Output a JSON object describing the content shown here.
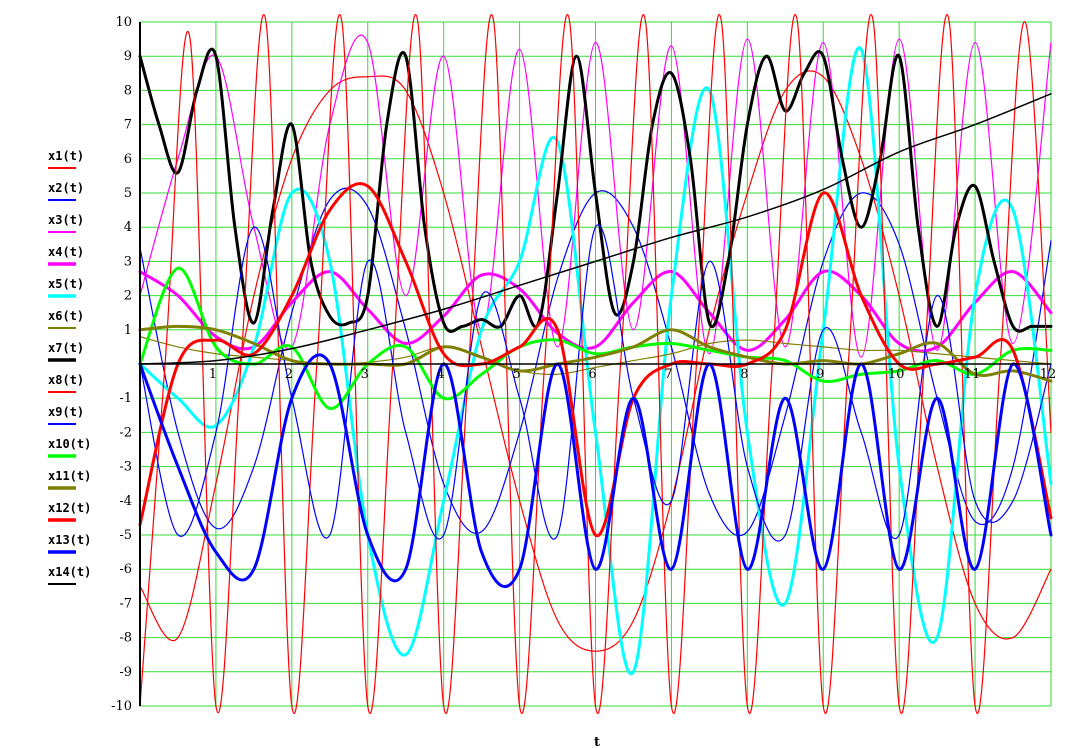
{
  "chart_data": {
    "type": "line",
    "xlabel": "t",
    "ylabel": "",
    "xlim": [
      0,
      12
    ],
    "ylim": [
      -10,
      10
    ],
    "grid": true,
    "grid_color": "#33dd33",
    "legend_position": "left",
    "x_ticks": [
      "1",
      "2",
      "3",
      "4",
      "5",
      "6",
      "7",
      "8",
      "9",
      "10",
      "11",
      "12"
    ],
    "y_ticks": [
      "-10",
      "-9",
      "-8",
      "-7",
      "-6",
      "-5",
      "-4",
      "-3",
      "-2",
      "-1",
      "1",
      "2",
      "3",
      "4",
      "5",
      "6",
      "7",
      "8",
      "9",
      "10"
    ],
    "series": [
      {
        "name": "x1(t)",
        "color": "#ff0000",
        "width": 1.2,
        "x": [
          0,
          0.5,
          1,
          1.5,
          2,
          2.5,
          3,
          3.5,
          4,
          4.5,
          5,
          5.5,
          6,
          6.5,
          7,
          7.5,
          8,
          8.5,
          9,
          9.5,
          10,
          10.5,
          11,
          11.5,
          12
        ],
        "y": [
          -6.5,
          -8,
          -3.5,
          2,
          6,
          8,
          8.4,
          8,
          5,
          0.5,
          -4,
          -7.5,
          -8.4,
          -7.5,
          -4,
          1,
          5,
          8,
          8.4,
          6,
          2,
          -3,
          -7,
          -8,
          -6
        ]
      },
      {
        "name": "x2(t)",
        "color": "#0000ff",
        "width": 1.2,
        "x": [
          0,
          0.5,
          1,
          1.5,
          2,
          2.5,
          3,
          3.5,
          4,
          4.5,
          5,
          5.5,
          6,
          6.5,
          7,
          7.5,
          8,
          8.5,
          9,
          9.5,
          10,
          10.5,
          11,
          11.5,
          12
        ],
        "y": [
          3.4,
          -2,
          -4.8,
          -3,
          1.5,
          4.8,
          4.6,
          1,
          -3.5,
          -4.9,
          -2,
          2.5,
          5,
          4,
          0.5,
          -3.8,
          -4.9,
          -1.5,
          3,
          5,
          3.5,
          -1,
          -4.6,
          -3,
          3.6
        ]
      },
      {
        "name": "x3(t)",
        "color": "#ff00ff",
        "width": 1.2,
        "x": [
          0,
          0.5,
          1,
          1.5,
          2,
          2.5,
          3,
          3.5,
          4,
          4.5,
          5,
          5.5,
          6,
          6.5,
          7,
          7.5,
          8,
          8.5,
          9,
          9.5,
          10,
          10.5,
          11,
          11.5,
          12
        ],
        "y": [
          2,
          6,
          9,
          4,
          0.5,
          7,
          9.4,
          2,
          9,
          1,
          9.2,
          0.5,
          9.4,
          1,
          9.3,
          0.3,
          9.5,
          0.5,
          9.4,
          0.2,
          9.5,
          0.4,
          9.4,
          0.6,
          9.4
        ]
      },
      {
        "name": "x4(t)",
        "color": "#ff00ff",
        "width": 3,
        "x": [
          0,
          0.5,
          1,
          1.5,
          2,
          2.5,
          3,
          3.5,
          4,
          4.5,
          5,
          5.5,
          6,
          6.5,
          7,
          7.5,
          8,
          8.5,
          9,
          9.5,
          10,
          10.5,
          11,
          11.5,
          12
        ],
        "y": [
          2.7,
          2,
          0.8,
          0.5,
          1.8,
          2.7,
          1.6,
          0.6,
          1.4,
          2.6,
          2.2,
          0.9,
          0.5,
          1.8,
          2.7,
          1.5,
          0.4,
          1.3,
          2.7,
          2,
          0.6,
          0.5,
          1.8,
          2.7,
          1.5
        ]
      },
      {
        "name": "x5(t)",
        "color": "#00ffff",
        "width": 3,
        "x": [
          0,
          0.5,
          1,
          1.5,
          2,
          2.5,
          3,
          3.5,
          4,
          4.5,
          5,
          5.5,
          6,
          6.5,
          7,
          7.5,
          8,
          8.5,
          9,
          9.5,
          10,
          10.5,
          11,
          11.5,
          12
        ],
        "y": [
          0,
          -1,
          -1.8,
          0.5,
          5,
          3,
          -5,
          -8.5,
          -4,
          1,
          3,
          6.5,
          -2,
          -9,
          2,
          8,
          -2,
          -7,
          1,
          9.2,
          -3,
          -8,
          2,
          4.5,
          -3.5
        ]
      },
      {
        "name": "x6(t)",
        "color": "#808000",
        "width": 1.2,
        "x": [
          0,
          0.5,
          1,
          1.5,
          2,
          2.5,
          3,
          3.5,
          4,
          4.5,
          5,
          5.5,
          6,
          6.5,
          7,
          7.5,
          8,
          8.5,
          9,
          9.5,
          10,
          10.5,
          11,
          11.5,
          12
        ],
        "y": [
          0.8,
          0.5,
          0.3,
          0.2,
          0.1,
          0.0,
          0.05,
          0.2,
          0.5,
          0.2,
          -0.2,
          -0.3,
          -0.1,
          0.1,
          0.3,
          0.6,
          0.7,
          0.6,
          0.5,
          0.4,
          0.4,
          0.3,
          0.2,
          0.1,
          0.0
        ]
      },
      {
        "name": "x7(t)",
        "color": "#000000",
        "width": 3,
        "x": [
          0,
          0.25,
          0.5,
          0.75,
          1,
          1.25,
          1.5,
          1.75,
          2,
          2.25,
          2.5,
          2.75,
          3,
          3.25,
          3.5,
          3.75,
          4,
          4.25,
          4.5,
          4.75,
          5,
          5.25,
          5.5,
          5.75,
          6,
          6.25,
          6.5,
          6.75,
          7,
          7.25,
          7.5,
          7.75,
          8,
          8.25,
          8.5,
          8.75,
          9,
          9.25,
          9.5,
          9.75,
          10,
          10.25,
          10.5,
          10.75,
          11,
          11.25,
          11.5,
          11.75,
          12
        ],
        "y": [
          9,
          7,
          5.6,
          8,
          9,
          4,
          1.2,
          4.5,
          7,
          3,
          1.4,
          1.2,
          2,
          7,
          9,
          4,
          1.2,
          1.1,
          1.3,
          1.1,
          2,
          1.2,
          5,
          9,
          5,
          1.5,
          3,
          7,
          8.5,
          6,
          1.2,
          3,
          7,
          9,
          7.4,
          8.5,
          9,
          6,
          4,
          6,
          9,
          4,
          1.1,
          4,
          5.2,
          3,
          1.1,
          1.1,
          1.1
        ]
      },
      {
        "name": "x8(t)",
        "color": "#ff0000",
        "width": 1.2,
        "x": [
          0,
          0.33,
          0.66,
          1,
          1.33,
          1.66,
          2,
          2.33,
          2.66,
          3,
          3.33,
          3.66,
          4,
          4.33,
          4.66,
          5,
          5.33,
          5.66,
          6,
          6.33,
          6.66,
          7,
          7.33,
          7.66,
          8,
          8.33,
          8.66,
          9,
          9.33,
          9.66,
          10,
          10.33,
          10.66,
          11,
          11.33,
          11.66,
          12
        ],
        "y": [
          -10,
          0,
          9.5,
          -10,
          0,
          10,
          -10,
          0,
          10,
          -10,
          0,
          10,
          -10,
          0,
          10,
          -10,
          0,
          10,
          -10,
          0,
          10,
          -10,
          0,
          10,
          -10,
          0,
          10,
          -10,
          0,
          10,
          -10,
          0,
          10,
          -10,
          0,
          10,
          -2
        ]
      },
      {
        "name": "x9(t)",
        "color": "#0000ff",
        "width": 1.2,
        "x": [
          0,
          0.5,
          1,
          1.5,
          2,
          2.5,
          3,
          3.5,
          4,
          4.5,
          5,
          5.5,
          6,
          6.5,
          7,
          7.5,
          8,
          8.5,
          9,
          9.5,
          10,
          10.5,
          11,
          11.5,
          12
        ],
        "y": [
          0,
          -5,
          -2,
          4,
          -1,
          -5,
          3,
          -2,
          -5,
          2,
          -1,
          -5,
          4,
          -1,
          -4,
          3,
          -3,
          -5,
          1,
          -2,
          -5,
          2,
          -4,
          -4,
          0
        ]
      },
      {
        "name": "x10(t)",
        "color": "#00ff00",
        "width": 3,
        "x": [
          0,
          0.5,
          1,
          1.5,
          2,
          2.5,
          3,
          3.5,
          4,
          4.5,
          5,
          5.5,
          6,
          6.5,
          7,
          7.5,
          8,
          8.5,
          9,
          9.5,
          10,
          10.5,
          11,
          11.5,
          12
        ],
        "y": [
          0,
          2.8,
          0.5,
          0,
          0.5,
          -1.3,
          0,
          0.5,
          -1,
          -0.3,
          0.5,
          0.7,
          0.3,
          0.5,
          0.6,
          0.4,
          0.2,
          0.1,
          -0.5,
          -0.3,
          -0.2,
          0.1,
          -0.3,
          0.4,
          0.4
        ]
      },
      {
        "name": "x11(t)",
        "color": "#808000",
        "width": 3,
        "x": [
          0,
          0.5,
          1,
          1.5,
          2,
          2.5,
          3,
          3.5,
          4,
          4.5,
          5,
          5.5,
          6,
          6.5,
          7,
          7.5,
          8,
          8.5,
          9,
          9.5,
          10,
          10.5,
          11,
          11.5,
          12
        ],
        "y": [
          1,
          1.1,
          1,
          0.6,
          0.1,
          0,
          0,
          0,
          0.5,
          0.2,
          -0.2,
          0,
          0.2,
          0.5,
          1,
          0.5,
          0.2,
          0,
          0.1,
          0,
          0.3,
          0.6,
          -0.3,
          -0.2,
          -0.5
        ]
      },
      {
        "name": "x12(t)",
        "color": "#ff0000",
        "width": 3,
        "x": [
          0,
          0.5,
          1,
          1.5,
          2,
          2.5,
          3,
          3.5,
          4,
          4.5,
          5,
          5.5,
          6,
          6.5,
          7,
          7.5,
          8,
          8.5,
          9,
          9.5,
          10,
          10.5,
          11,
          11.5,
          12
        ],
        "y": [
          -4.7,
          0,
          0.7,
          0.3,
          2,
          4.5,
          5.2,
          3,
          0.3,
          0,
          0.5,
          1,
          -5,
          -1,
          0,
          0,
          0,
          1,
          5,
          2,
          0,
          0,
          0.2,
          0.4,
          -4.5
        ]
      },
      {
        "name": "x13(t)",
        "color": "#0000ff",
        "width": 3,
        "x": [
          0,
          0.5,
          1,
          1.5,
          2,
          2.5,
          3,
          3.5,
          4,
          4.5,
          5,
          5.5,
          6,
          6.5,
          7,
          7.5,
          8,
          8.5,
          9,
          9.5,
          10,
          10.5,
          11,
          11.5,
          12
        ],
        "y": [
          0,
          -3,
          -5.5,
          -6,
          -1,
          0,
          -5,
          -6,
          0,
          -5.5,
          -6,
          0,
          -6,
          -1,
          -6,
          0,
          -6,
          -1,
          -6,
          0,
          -6,
          -1,
          -6,
          0,
          -5
        ]
      },
      {
        "name": "x14(t)",
        "color": "#000000",
        "width": 1.5,
        "x": [
          0,
          1,
          2,
          3,
          4,
          5,
          6,
          7,
          8,
          9,
          10,
          11,
          12
        ],
        "y": [
          0,
          0.1,
          0.45,
          1,
          1.6,
          2.3,
          3,
          3.7,
          4.3,
          5.1,
          6.2,
          7,
          7.9
        ]
      }
    ]
  }
}
